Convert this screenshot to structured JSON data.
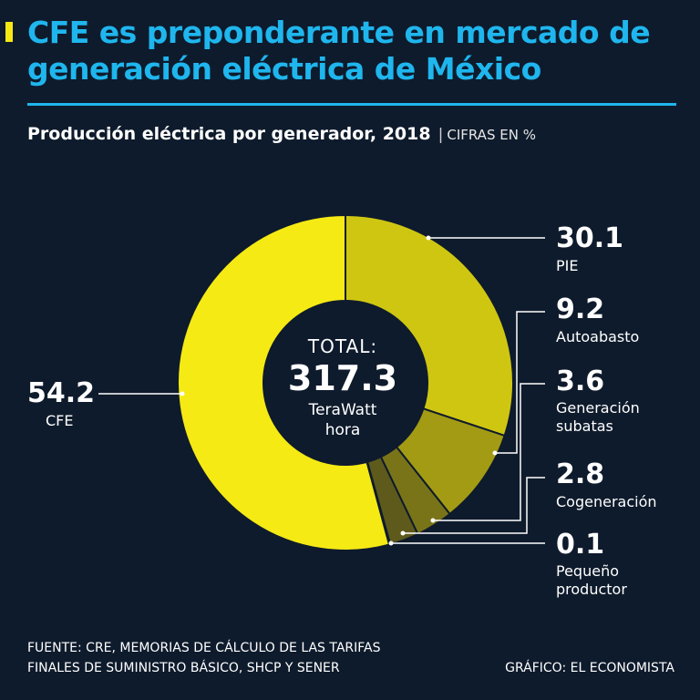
{
  "header": {
    "title": "CFE es preponderante en mercado de generación eléctrica de México",
    "subtitle": "Producción eléctrica por generador, 2018",
    "units": "CIFRAS EN %"
  },
  "center": {
    "label": "TOTAL:",
    "value": "317.3",
    "unit_line1": "TeraWatt",
    "unit_line2": "hora"
  },
  "footer": {
    "source_line1": "FUENTE: CRE, MEMORIAS DE CÁLCULO DE LAS TARIFAS",
    "source_line2": "FINALES DE SUMINISTRO BÁSICO, SHCP Y SENER",
    "credit": "GRÁFICO: EL ECONOMISTA"
  },
  "colors": {
    "background": "#0e1b2c",
    "title": "#1fb6ee",
    "accent": "#f5ea14"
  },
  "chart_data": {
    "type": "pie",
    "style": "donut",
    "unit": "%",
    "total": 317.3,
    "total_unit": "TeraWatt hora",
    "slices": [
      {
        "label": "PIE",
        "value": 30.1,
        "display": "30.1",
        "color": "#cfc612"
      },
      {
        "label": "Autoabasto",
        "value": 9.2,
        "display": "9.2",
        "color": "#a39b14"
      },
      {
        "label": "Generación subatas",
        "value": 3.6,
        "display": "3.6",
        "color": "#7a7419"
      },
      {
        "label": "Cogeneración",
        "value": 2.8,
        "display": "2.8",
        "color": "#5e5a1c"
      },
      {
        "label": "Pequeño productor",
        "value": 0.1,
        "display": "0.1",
        "color": "#45441f"
      },
      {
        "label": "CFE",
        "value": 54.2,
        "display": "54.2",
        "color": "#f5ea14"
      }
    ]
  }
}
